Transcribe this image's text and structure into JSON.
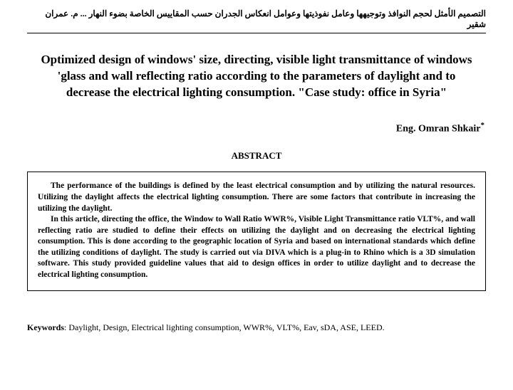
{
  "header_arabic": "التصميم الأمثل لحجم النوافذ وتوجيهها وعامل نفوذيتها وعوامل انعكاس الجدران حسب المقاييس الخاصة بضوء النهار ... م. عمران شقير",
  "title": "Optimized design of windows' size, directing, visible light transmittance of windows 'glass and wall reflecting ratio according to the parameters of daylight and to decrease the electrical lighting consumption. \"Case study: office in Syria\"",
  "author": "Eng. Omran Shkair",
  "author_mark": "*",
  "abstract_heading": "ABSTRACT",
  "abstract_p1": "The performance of the buildings is defined by the least electrical consumption and by utilizing the natural resources. Utilizing the daylight affects the electrical lighting consumption. There are some factors that contribute in increasing the utilizing the daylight.",
  "abstract_p2": "In this article, directing the office, the Window to Wall Ratio WWR%, Visible Light Transmittance ratio VLT%, and wall reflecting ratio are studied to define their effects on utilizing the daylight and on decreasing the electrical lighting consumption. This is done according to the geographic location of Syria and based on international standards which define the utilizing conditions of daylight. The study is carried out via DIVA which is a plug-in to Rhino which is a 3D simulation software. This study provided guideline values that aid to design offices in order to utilize daylight and to decrease the electrical lighting consumption.",
  "keywords_label": "Keywords",
  "keywords_text": ": Daylight, Design, Electrical lighting consumption, WWR%, VLT%, Eav, sDA, ASE, LEED."
}
